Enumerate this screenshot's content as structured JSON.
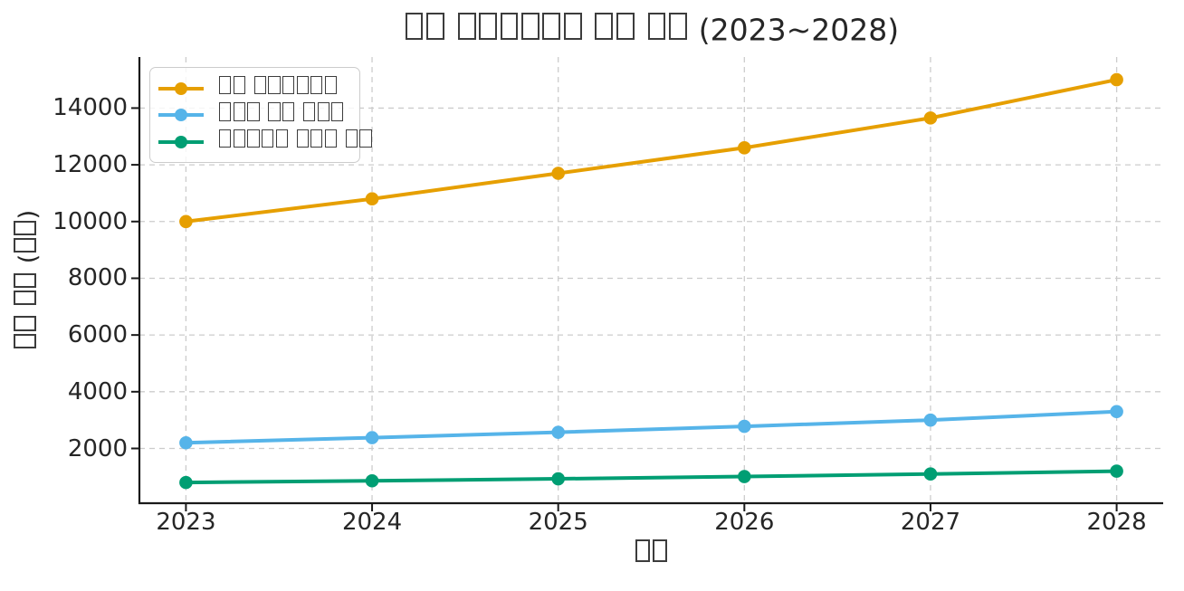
{
  "title": {
    "text": "□□ □□□□□□ □□ □□ (2023~2028)"
  },
  "axes": {
    "xlabel": "□□",
    "ylabel": "□□ □□ (□□)",
    "x_ticks": [
      "2023",
      "2024",
      "2025",
      "2026",
      "2027",
      "2028"
    ],
    "y_ticks": [
      "2000",
      "4000",
      "6000",
      "8000",
      "10000",
      "12000",
      "14000"
    ]
  },
  "legend": {
    "position": "upper-left",
    "items": [
      {
        "label": "□□ □□□□□□",
        "color": "#E69F00"
      },
      {
        "label": "□□□ □□ □□□",
        "color": "#56B4E9"
      },
      {
        "label": "□□□□□ □□□ □□",
        "color": "#009E73"
      }
    ]
  },
  "colors": {
    "grid": "#cccccc",
    "spine": "#1a1a1a",
    "text": "#262626",
    "tofu_outline": "#3c3c3c",
    "legend_border": "#cccccc",
    "background": "#ffffff"
  },
  "chart_data": {
    "type": "line",
    "x": [
      2023,
      2024,
      2025,
      2026,
      2027,
      2028
    ],
    "series": [
      {
        "name": "□□ □□□□□□",
        "color": "#E69F00",
        "values": [
          10000,
          10800,
          11700,
          12600,
          13650,
          15000
        ]
      },
      {
        "name": "□□□ □□ □□□",
        "color": "#56B4E9",
        "values": [
          2200,
          2380,
          2570,
          2780,
          3000,
          3300
        ]
      },
      {
        "name": "□□□□□ □□□ □□",
        "color": "#009E73",
        "values": [
          800,
          860,
          930,
          1010,
          1100,
          1200
        ]
      }
    ],
    "title": "□□ □□□□□□ □□ □□ (2023~2028)",
    "xlabel": "□□",
    "ylabel": "□□ □□ (□□)",
    "xlim": [
      2022.75,
      2028.25
    ],
    "ylim": [
      70,
      15800
    ],
    "grid": true,
    "grid_style": "dashed",
    "legend_position": "upper left",
    "marker": "circle",
    "missing_glyphs": true
  }
}
